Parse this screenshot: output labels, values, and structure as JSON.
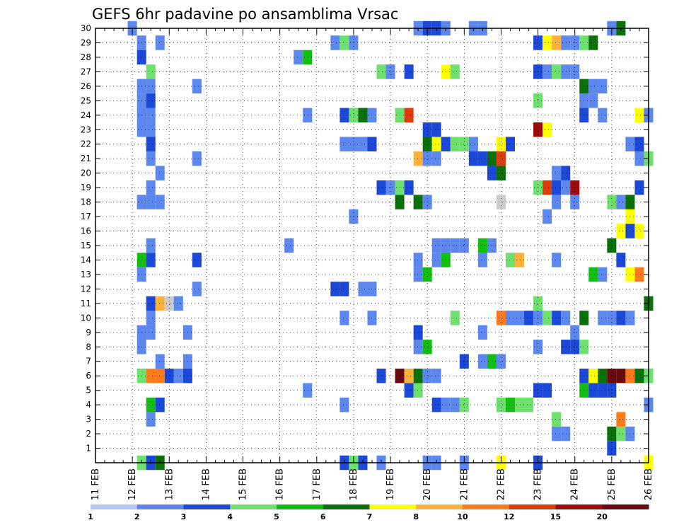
{
  "chart_data": {
    "type": "heatmap",
    "title": "GEFS 6hr padavine po ansamblima Vrsac",
    "y_ticks": [
      1,
      2,
      3,
      4,
      5,
      6,
      7,
      8,
      9,
      10,
      11,
      12,
      13,
      14,
      15,
      16,
      17,
      18,
      19,
      20,
      21,
      22,
      23,
      24,
      25,
      26,
      27,
      28,
      29,
      30
    ],
    "x_ticks": [
      "11 FEB",
      "12 FEB",
      "13 FEB",
      "14 FEB",
      "15 FEB",
      "16 FEB",
      "17 FEB",
      "18 FEB",
      "19 FEB",
      "20 FEB",
      "21 FEB",
      "22 FEB",
      "23 FEB",
      "24 FEB",
      "25 FEB",
      "26 FEB"
    ],
    "x_range_days": [
      11,
      26
    ],
    "y_range": [
      0,
      30
    ],
    "step_hours": 6,
    "grid": true,
    "legend": "bottom",
    "colorbar": {
      "labels": [
        "1",
        "2",
        "3",
        "4",
        "5",
        "6",
        "7",
        "8",
        "10",
        "12",
        "15",
        "20"
      ],
      "colors": [
        "#b3c6f7",
        "#5b87ee",
        "#1b48d6",
        "#6ee06e",
        "#13be13",
        "#0a700a",
        "#ffff00",
        "#ffb13a",
        "#ff7a1a",
        "#e03c0a",
        "#a00a0a",
        "#6a0a0a"
      ]
    },
    "series": [
      {
        "member": 0,
        "cells": [
          [
            12.25,
            3
          ],
          [
            12.5,
            2
          ],
          [
            12.75,
            5
          ],
          [
            17.75,
            2
          ],
          [
            18.0,
            3
          ],
          [
            18.25,
            2
          ],
          [
            18.75,
            1
          ],
          [
            20.0,
            1
          ],
          [
            20.25,
            1
          ],
          [
            21.0,
            1
          ],
          [
            22.0,
            6
          ],
          [
            23.0,
            2
          ],
          [
            26.0,
            6
          ]
        ]
      },
      {
        "member": 1,
        "cells": [
          [
            25.0,
            2
          ]
        ]
      },
      {
        "member": 2,
        "cells": [
          [
            23.5,
            1
          ],
          [
            23.75,
            1
          ],
          [
            25.0,
            5
          ],
          [
            25.25,
            3
          ],
          [
            25.5,
            1
          ]
        ]
      },
      {
        "member": 3,
        "cells": [
          [
            12.5,
            1
          ],
          [
            23.5,
            3
          ],
          [
            25.25,
            8
          ]
        ]
      },
      {
        "member": 4,
        "cells": [
          [
            12.5,
            4
          ],
          [
            12.75,
            2
          ],
          [
            17.75,
            1
          ],
          [
            20.25,
            2
          ],
          [
            20.5,
            1
          ],
          [
            20.75,
            1
          ],
          [
            21.0,
            3
          ],
          [
            22.0,
            3
          ],
          [
            22.25,
            4
          ],
          [
            22.5,
            3
          ],
          [
            22.75,
            3
          ],
          [
            26.0,
            1
          ]
        ]
      },
      {
        "member": 5,
        "cells": [
          [
            16.75,
            1
          ],
          [
            19.5,
            2
          ],
          [
            19.75,
            3
          ],
          [
            23.0,
            2
          ],
          [
            23.25,
            2
          ],
          [
            24.25,
            4
          ],
          [
            24.5,
            2
          ],
          [
            24.75,
            2
          ],
          [
            25.0,
            2
          ]
        ]
      },
      {
        "member": 6,
        "cells": [
          [
            12.25,
            3
          ],
          [
            12.5,
            8
          ],
          [
            12.75,
            8
          ],
          [
            13.0,
            2
          ],
          [
            13.25,
            1
          ],
          [
            13.5,
            2
          ],
          [
            18.75,
            2
          ],
          [
            19.25,
            11
          ],
          [
            19.5,
            7
          ],
          [
            19.75,
            5
          ],
          [
            20.0,
            1
          ],
          [
            20.25,
            1
          ],
          [
            24.25,
            2
          ],
          [
            24.5,
            6
          ],
          [
            24.75,
            5
          ],
          [
            25.0,
            11
          ],
          [
            25.25,
            11
          ],
          [
            25.5,
            8
          ],
          [
            25.75,
            5
          ],
          [
            26.0,
            3
          ]
        ]
      },
      {
        "member": 7,
        "cells": [
          [
            12.75,
            1
          ],
          [
            13.5,
            1
          ],
          [
            21.0,
            2
          ],
          [
            21.5,
            1
          ],
          [
            21.75,
            4
          ],
          [
            22.0,
            1
          ]
        ]
      },
      {
        "member": 8,
        "cells": [
          [
            12.25,
            1
          ],
          [
            19.75,
            1
          ],
          [
            20.0,
            4
          ],
          [
            23.0,
            1
          ],
          [
            23.75,
            2
          ],
          [
            24.0,
            2
          ],
          [
            24.25,
            3
          ]
        ]
      },
      {
        "member": 9,
        "cells": [
          [
            12.25,
            1
          ],
          [
            12.5,
            1
          ],
          [
            13.5,
            1
          ],
          [
            19.75,
            2
          ],
          [
            21.5,
            1
          ],
          [
            24.0,
            1
          ]
        ]
      },
      {
        "member": 10,
        "cells": [
          [
            12.5,
            1
          ],
          [
            17.75,
            1
          ],
          [
            18.5,
            1
          ],
          [
            20.75,
            3
          ],
          [
            22.0,
            8
          ],
          [
            22.25,
            1
          ],
          [
            22.5,
            1
          ],
          [
            22.75,
            2
          ],
          [
            23.0,
            1
          ],
          [
            23.25,
            3
          ],
          [
            23.5,
            2
          ],
          [
            23.75,
            1
          ],
          [
            24.25,
            5
          ],
          [
            24.75,
            1
          ],
          [
            25.0,
            1
          ],
          [
            25.25,
            2
          ],
          [
            25.5,
            1
          ]
        ]
      },
      {
        "member": 11,
        "cells": [
          [
            12.5,
            2
          ],
          [
            12.75,
            7
          ],
          [
            13.0,
            12
          ],
          [
            13.25,
            1
          ],
          [
            23.0,
            3
          ],
          [
            26.0,
            5
          ]
        ]
      },
      {
        "member": 12,
        "cells": [
          [
            13.75,
            1
          ],
          [
            17.5,
            2
          ],
          [
            17.75,
            2
          ],
          [
            18.25,
            1
          ],
          [
            18.5,
            1
          ]
        ]
      },
      {
        "member": 13,
        "cells": [
          [
            12.25,
            1
          ],
          [
            19.75,
            1
          ],
          [
            20.0,
            4
          ],
          [
            24.5,
            4
          ],
          [
            24.75,
            1
          ],
          [
            25.5,
            6
          ],
          [
            25.75,
            8
          ]
        ]
      },
      {
        "member": 14,
        "cells": [
          [
            12.25,
            4
          ],
          [
            12.5,
            2
          ],
          [
            13.75,
            2
          ],
          [
            19.75,
            1
          ],
          [
            20.25,
            1
          ],
          [
            20.5,
            4
          ],
          [
            21.5,
            1
          ],
          [
            22.25,
            3
          ],
          [
            22.5,
            7
          ],
          [
            23.5,
            1
          ],
          [
            25.25,
            2
          ]
        ]
      },
      {
        "member": 15,
        "cells": [
          [
            12.5,
            1
          ],
          [
            16.25,
            1
          ],
          [
            20.25,
            1
          ],
          [
            20.5,
            1
          ],
          [
            20.75,
            1
          ],
          [
            21.0,
            1
          ],
          [
            21.5,
            4
          ],
          [
            21.75,
            1
          ],
          [
            25.0,
            5
          ]
        ]
      },
      {
        "member": 16,
        "cells": [
          [
            25.25,
            6
          ],
          [
            25.5,
            2
          ],
          [
            25.75,
            6
          ]
        ]
      },
      {
        "member": 17,
        "cells": [
          [
            18.0,
            1
          ],
          [
            23.25,
            1
          ],
          [
            25.5,
            6
          ]
        ]
      },
      {
        "member": 18,
        "cells": [
          [
            12.25,
            1
          ],
          [
            12.5,
            1
          ],
          [
            12.75,
            1
          ],
          [
            19.25,
            5
          ],
          [
            19.75,
            5
          ],
          [
            20.0,
            1
          ],
          [
            22.0,
            14
          ],
          [
            23.5,
            1
          ],
          [
            24.0,
            1
          ],
          [
            25.0,
            3
          ],
          [
            25.25,
            1
          ],
          [
            25.5,
            5
          ]
        ]
      },
      {
        "member": 19,
        "cells": [
          [
            12.5,
            1
          ],
          [
            18.75,
            2
          ],
          [
            19.0,
            1
          ],
          [
            19.25,
            3
          ],
          [
            19.5,
            2
          ],
          [
            23.0,
            3
          ],
          [
            23.25,
            9
          ],
          [
            23.5,
            2
          ],
          [
            23.75,
            1
          ],
          [
            24.0,
            10
          ],
          [
            25.75,
            2
          ]
        ]
      },
      {
        "member": 20,
        "cells": [
          [
            12.75,
            1
          ],
          [
            21.75,
            2
          ],
          [
            22.0,
            5
          ],
          [
            23.5,
            1
          ],
          [
            23.75,
            2
          ]
        ]
      },
      {
        "member": 21,
        "cells": [
          [
            12.5,
            1
          ],
          [
            13.75,
            1
          ],
          [
            19.75,
            7
          ],
          [
            20.0,
            1
          ],
          [
            20.25,
            1
          ],
          [
            21.25,
            2
          ],
          [
            21.5,
            2
          ],
          [
            21.75,
            5
          ],
          [
            22.0,
            9
          ],
          [
            25.75,
            1
          ],
          [
            26.0,
            3
          ]
        ]
      },
      {
        "member": 22,
        "cells": [
          [
            12.5,
            2
          ],
          [
            17.75,
            1
          ],
          [
            18.0,
            1
          ],
          [
            18.25,
            1
          ],
          [
            18.5,
            2
          ],
          [
            20.0,
            5
          ],
          [
            20.25,
            6
          ],
          [
            20.5,
            2
          ],
          [
            20.75,
            3
          ],
          [
            21.0,
            3
          ],
          [
            21.25,
            1
          ],
          [
            22.0,
            6
          ],
          [
            22.25,
            2
          ],
          [
            25.5,
            1
          ],
          [
            25.75,
            2
          ]
        ]
      },
      {
        "member": 23,
        "cells": [
          [
            12.25,
            1
          ],
          [
            12.5,
            1
          ],
          [
            20.0,
            2
          ],
          [
            20.25,
            2
          ],
          [
            23.0,
            10
          ],
          [
            23.25,
            6
          ]
        ]
      },
      {
        "member": 24,
        "cells": [
          [
            12.25,
            1
          ],
          [
            12.5,
            1
          ],
          [
            16.75,
            1
          ],
          [
            17.75,
            2
          ],
          [
            18.0,
            3
          ],
          [
            18.25,
            5
          ],
          [
            18.5,
            1
          ],
          [
            19.25,
            3
          ],
          [
            19.5,
            9
          ],
          [
            24.25,
            2
          ],
          [
            24.75,
            1
          ],
          [
            25.75,
            6
          ],
          [
            26.0,
            1
          ]
        ]
      },
      {
        "member": 25,
        "cells": [
          [
            12.25,
            1
          ],
          [
            12.5,
            2
          ],
          [
            23.0,
            3
          ],
          [
            24.25,
            1
          ],
          [
            24.5,
            1
          ]
        ]
      },
      {
        "member": 26,
        "cells": [
          [
            12.25,
            1
          ],
          [
            12.5,
            1
          ],
          [
            13.75,
            1
          ],
          [
            24.25,
            5
          ],
          [
            24.5,
            1
          ],
          [
            24.75,
            1
          ]
        ]
      },
      {
        "member": 27,
        "cells": [
          [
            12.5,
            3
          ],
          [
            18.75,
            3
          ],
          [
            19.0,
            1
          ],
          [
            19.5,
            2
          ],
          [
            20.5,
            6
          ],
          [
            20.75,
            3
          ],
          [
            23.0,
            2
          ],
          [
            23.25,
            1
          ],
          [
            23.5,
            3
          ],
          [
            23.75,
            1
          ],
          [
            24.0,
            1
          ]
        ]
      },
      {
        "member": 28,
        "cells": [
          [
            12.25,
            2
          ],
          [
            16.5,
            1
          ],
          [
            16.75,
            4
          ]
        ]
      },
      {
        "member": 29,
        "cells": [
          [
            12.25,
            1
          ],
          [
            12.75,
            1
          ],
          [
            17.5,
            1
          ],
          [
            17.75,
            3
          ],
          [
            18.0,
            1
          ],
          [
            23.0,
            2
          ],
          [
            23.25,
            6
          ],
          [
            23.5,
            7
          ],
          [
            23.75,
            1
          ],
          [
            24.0,
            1
          ],
          [
            24.25,
            3
          ],
          [
            24.5,
            5
          ]
        ]
      },
      {
        "member": 30,
        "cells": [
          [
            12.0,
            1
          ],
          [
            19.75,
            1
          ],
          [
            20.0,
            2
          ],
          [
            20.25,
            2
          ],
          [
            20.5,
            1
          ],
          [
            21.25,
            1
          ],
          [
            21.5,
            1
          ],
          [
            25.0,
            1
          ],
          [
            25.25,
            5
          ]
        ]
      }
    ]
  }
}
